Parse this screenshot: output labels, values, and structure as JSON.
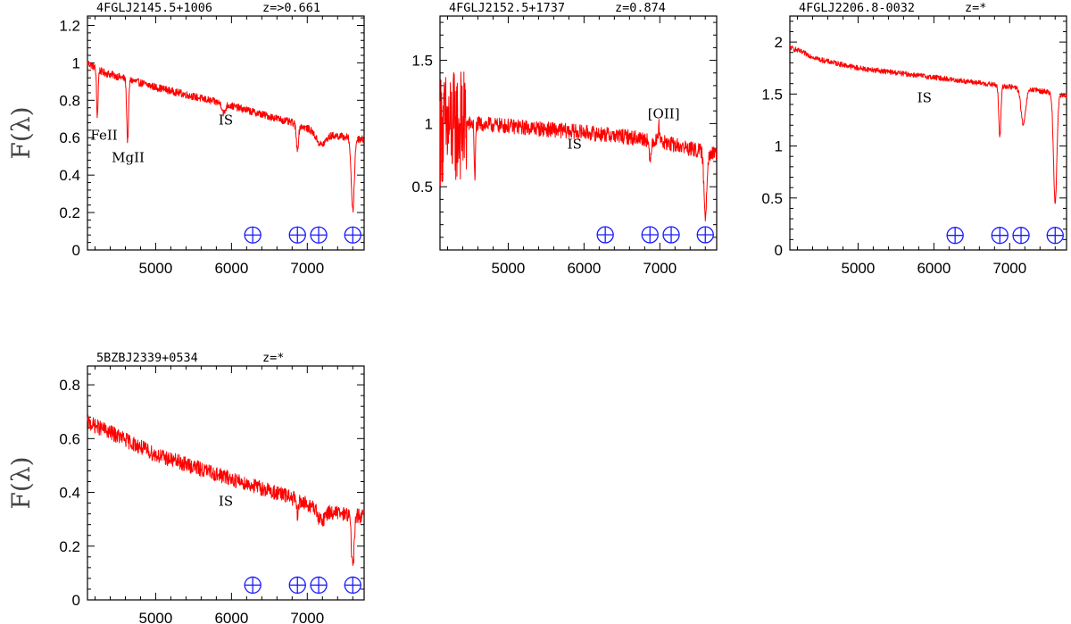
{
  "figure": {
    "ylabel": "F(λ)"
  },
  "chart_data": [
    {
      "type": "line",
      "name": "4FGLJ2145.5+1006",
      "redshift": "z=>0.661",
      "xlim": [
        4100,
        7750
      ],
      "ylim": [
        0,
        1.25
      ],
      "xticks": [
        5000,
        6000,
        7000
      ],
      "yticks": [
        0,
        0.2,
        0.4,
        0.6,
        0.8,
        1,
        1.2
      ],
      "continuum": [
        [
          4100,
          1.0
        ],
        [
          4300,
          0.95
        ],
        [
          5000,
          0.87
        ],
        [
          6000,
          0.77
        ],
        [
          6800,
          0.68
        ],
        [
          7200,
          0.62
        ],
        [
          7750,
          0.59
        ]
      ],
      "noise": 0.02,
      "features": [
        {
          "x": 4230,
          "depth": 0.25,
          "width": 10
        },
        {
          "x": 4630,
          "depth": 0.33,
          "width": 12
        },
        {
          "x": 5900,
          "depth": 0.05,
          "width": 20
        },
        {
          "x": 6870,
          "depth": 0.13,
          "width": 15
        },
        {
          "x": 7180,
          "depth": 0.06,
          "width": 60
        },
        {
          "x": 7600,
          "depth": 0.39,
          "width": 20
        }
      ],
      "annotations": [
        {
          "text": "FeII",
          "x": 4140,
          "y": 0.59
        },
        {
          "text": "MgII",
          "x": 4420,
          "y": 0.47
        },
        {
          "text": "IS",
          "x": 5830,
          "y": 0.67
        }
      ],
      "telluric": [
        6280,
        6870,
        7150,
        7600
      ],
      "telluric_y": 0.08
    },
    {
      "type": "line",
      "name": "4FGLJ2152.5+1737",
      "redshift": "z=0.874",
      "xlim": [
        4100,
        7750
      ],
      "ylim": [
        0,
        1.85
      ],
      "xticks": [
        5000,
        6000,
        7000
      ],
      "yticks": [
        0.5,
        1,
        1.5
      ],
      "continuum": [
        [
          4100,
          0.95
        ],
        [
          4500,
          1.0
        ],
        [
          5000,
          0.98
        ],
        [
          6000,
          0.93
        ],
        [
          6800,
          0.88
        ],
        [
          7200,
          0.83
        ],
        [
          7750,
          0.75
        ]
      ],
      "noise": 0.06,
      "noisy_blue": {
        "until": 4450,
        "amp": 0.45
      },
      "features": [
        {
          "x": 4560,
          "depth": 0.45,
          "width": 8
        },
        {
          "x": 6870,
          "depth": 0.18,
          "width": 12
        },
        {
          "x": 7600,
          "depth": 0.5,
          "width": 18
        }
      ],
      "emission": [
        {
          "x": 6990,
          "height": 0.12,
          "width": 12
        }
      ],
      "annotations": [
        {
          "text": "[OII]",
          "x": 6840,
          "y": 1.04
        },
        {
          "text": "IS",
          "x": 5780,
          "y": 0.8
        }
      ],
      "telluric": [
        6280,
        6870,
        7150,
        7600
      ],
      "telluric_y": 0.12
    },
    {
      "type": "line",
      "name": "4FGLJ2206.8-0032",
      "redshift": "z=*",
      "xlim": [
        4100,
        7750
      ],
      "ylim": [
        0,
        2.25
      ],
      "xticks": [
        5000,
        6000,
        7000
      ],
      "yticks": [
        0,
        0.5,
        1,
        1.5,
        2
      ],
      "continuum": [
        [
          4100,
          1.95
        ],
        [
          4500,
          1.83
        ],
        [
          5000,
          1.75
        ],
        [
          6000,
          1.66
        ],
        [
          7000,
          1.57
        ],
        [
          7500,
          1.52
        ],
        [
          7750,
          1.48
        ]
      ],
      "noise": 0.025,
      "features": [
        {
          "x": 6870,
          "depth": 0.5,
          "width": 14
        },
        {
          "x": 7180,
          "depth": 0.35,
          "width": 30
        },
        {
          "x": 7600,
          "depth": 1.05,
          "width": 22
        }
      ],
      "annotations": [
        {
          "text": "IS",
          "x": 5780,
          "y": 1.42
        }
      ],
      "telluric": [
        6280,
        6870,
        7150,
        7600
      ],
      "telluric_y": 0.14
    },
    {
      "type": "line",
      "name": "5BZBJ2339+0534",
      "redshift": "z=*",
      "xlim": [
        4100,
        7750
      ],
      "ylim": [
        0,
        0.87
      ],
      "xticks": [
        5000,
        6000,
        7000
      ],
      "yticks": [
        0,
        0.2,
        0.4,
        0.6,
        0.8
      ],
      "continuum": [
        [
          4100,
          0.66
        ],
        [
          4500,
          0.61
        ],
        [
          5000,
          0.54
        ],
        [
          6000,
          0.45
        ],
        [
          6800,
          0.38
        ],
        [
          7200,
          0.33
        ],
        [
          7750,
          0.31
        ]
      ],
      "noise": 0.028,
      "features": [
        {
          "x": 6870,
          "depth": 0.06,
          "width": 12
        },
        {
          "x": 7180,
          "depth": 0.04,
          "width": 40
        },
        {
          "x": 7600,
          "depth": 0.19,
          "width": 18
        }
      ],
      "annotations": [
        {
          "text": "IS",
          "x": 5830,
          "y": 0.35
        }
      ],
      "telluric": [
        6280,
        6870,
        7150,
        7600
      ],
      "telluric_y": 0.055
    }
  ]
}
